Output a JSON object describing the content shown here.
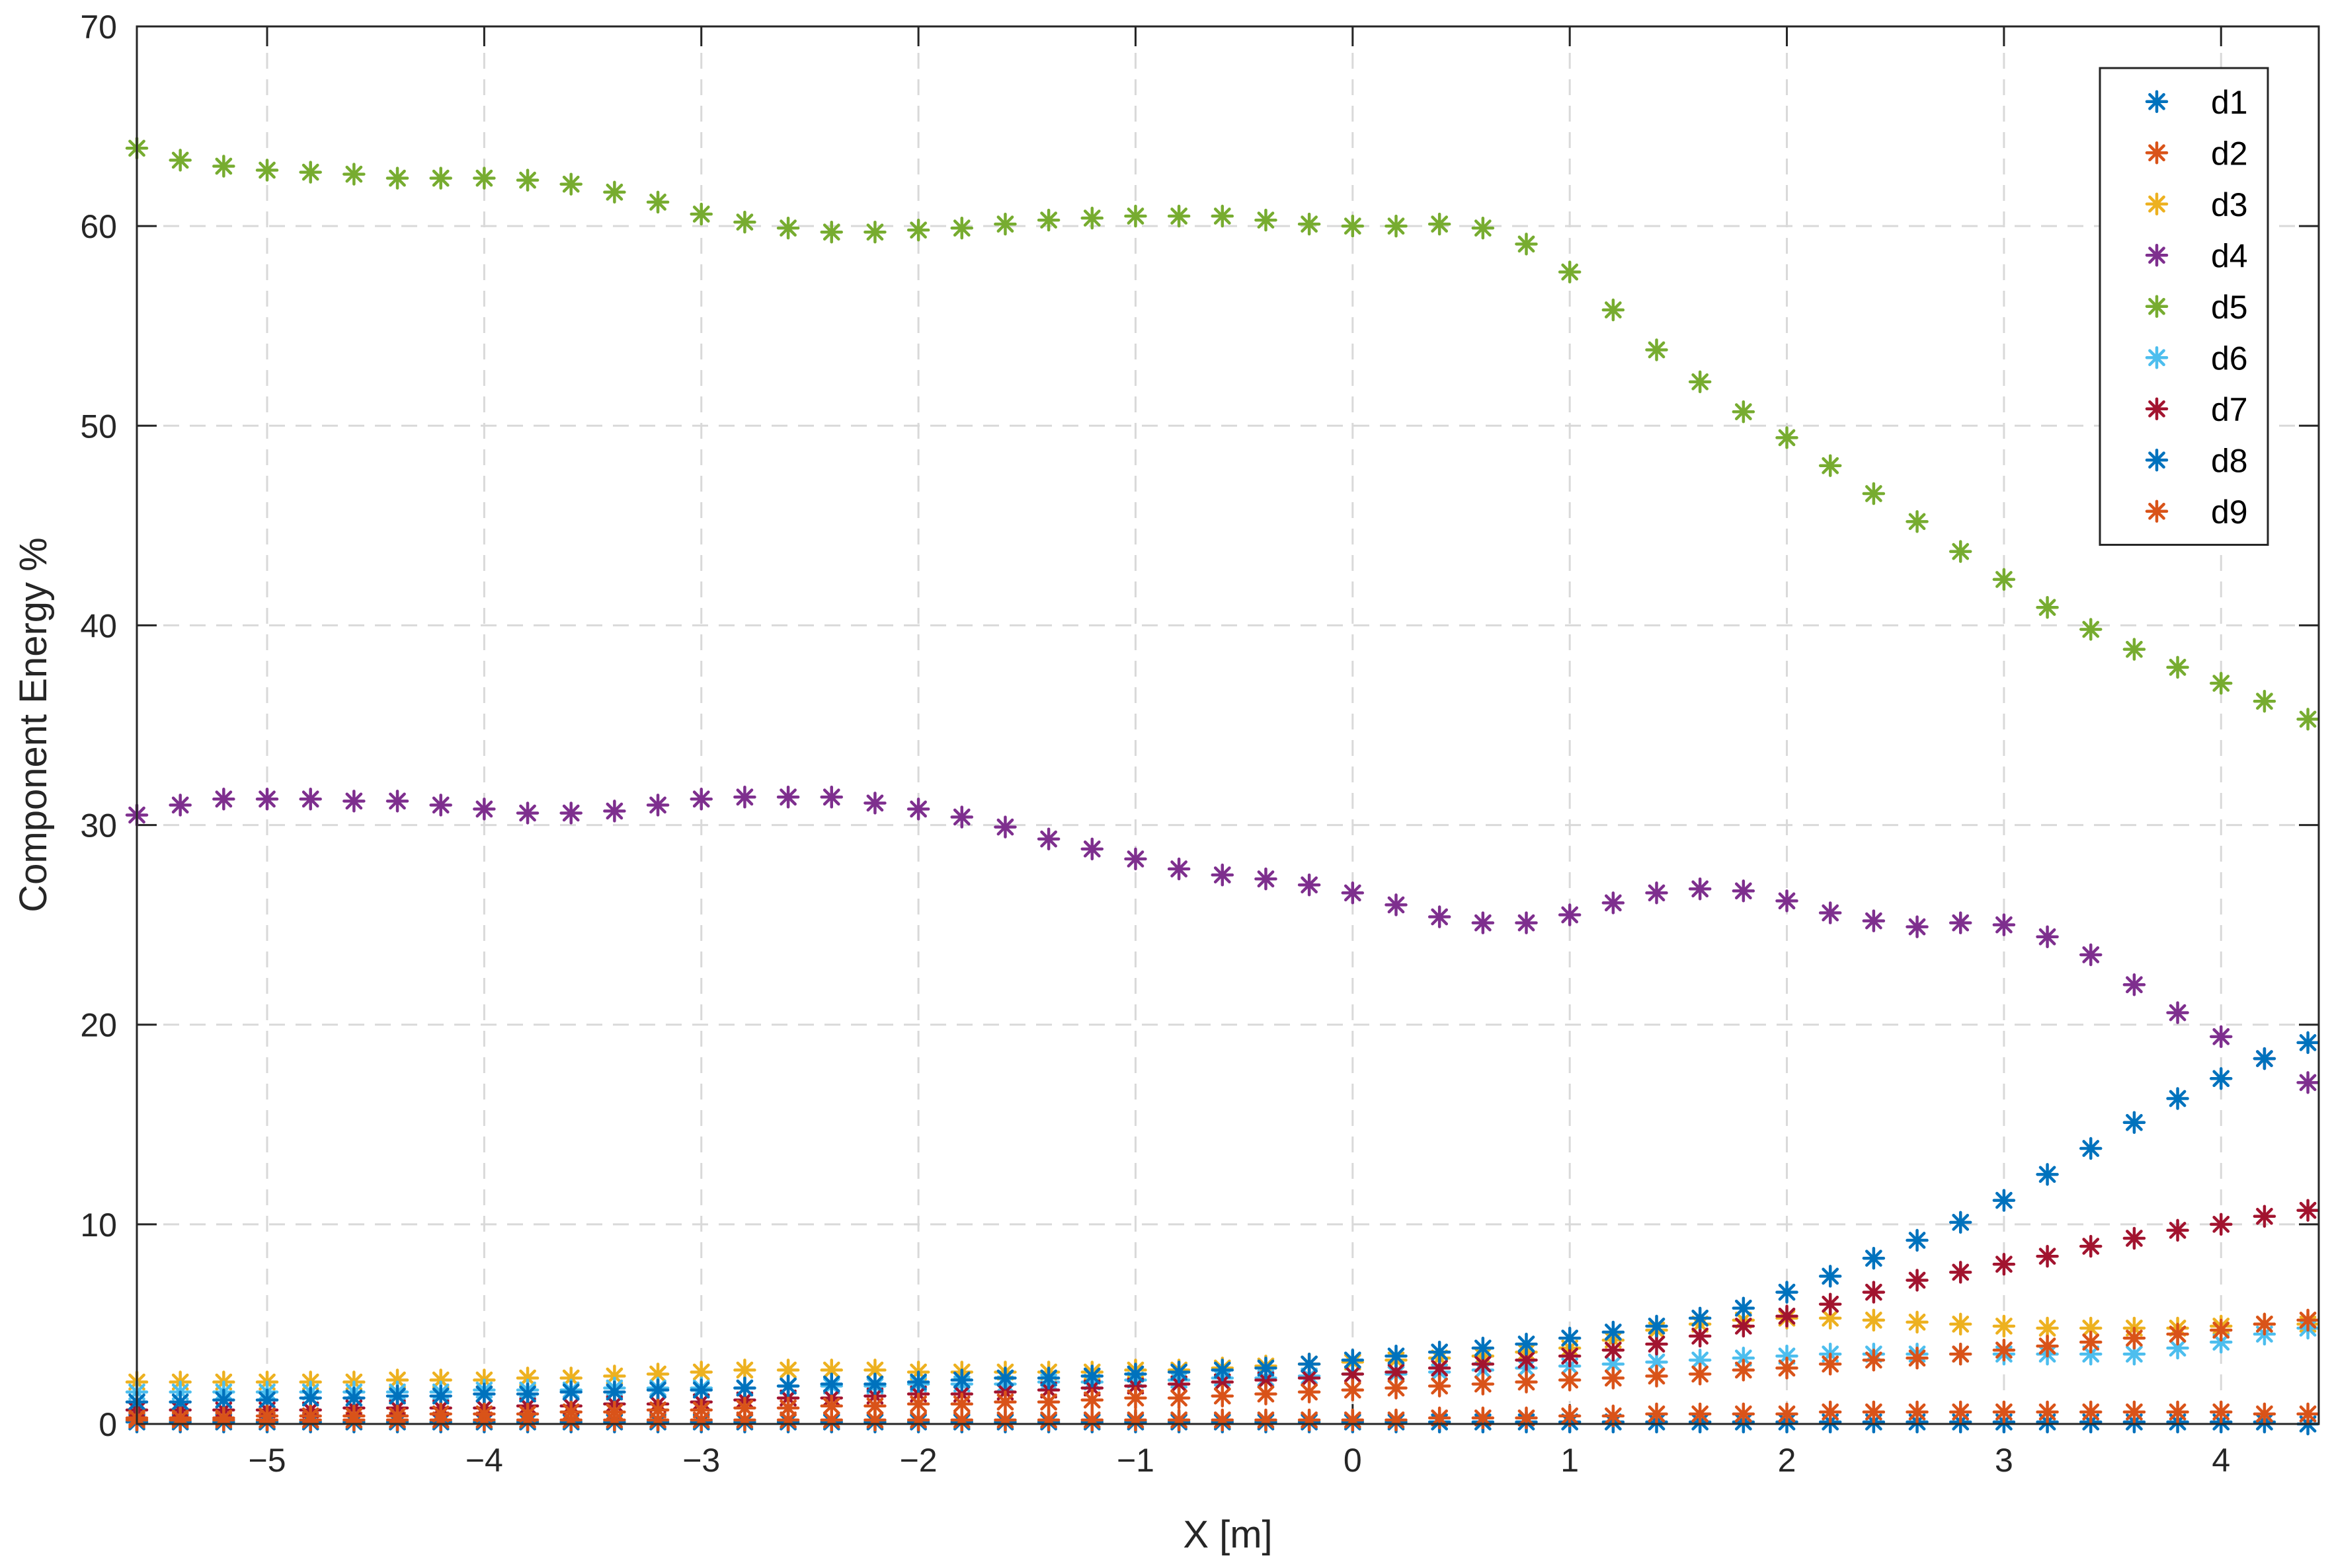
{
  "chart_data": {
    "type": "scatter",
    "marker": "asterisk",
    "title": "",
    "xlabel": "X [m]",
    "ylabel": "Component Energy %",
    "xlim": [
      -5.6,
      4.45
    ],
    "ylim": [
      0,
      70
    ],
    "xticks": [
      -5,
      -4,
      -3,
      -2,
      -1,
      0,
      1,
      2,
      3,
      4
    ],
    "xtick_labels": [
      "−5",
      "−4",
      "−3",
      "−2",
      "−1",
      "0",
      "1",
      "2",
      "3",
      "4"
    ],
    "yticks": [
      0,
      10,
      20,
      30,
      40,
      50,
      60,
      70
    ],
    "ytick_labels": [
      "0",
      "10",
      "20",
      "30",
      "40",
      "50",
      "60",
      "70"
    ],
    "grid": true,
    "legend_position": "top-right",
    "x": [
      -5.6,
      -5.4,
      -5.2,
      -5.0,
      -4.8,
      -4.6,
      -4.4,
      -4.2,
      -4.0,
      -3.8,
      -3.6,
      -3.4,
      -3.2,
      -3.0,
      -2.8,
      -2.6,
      -2.4,
      -2.2,
      -2.0,
      -1.8,
      -1.6,
      -1.4,
      -1.2,
      -1.0,
      -0.8,
      -0.6,
      -0.4,
      -0.2,
      0.0,
      0.2,
      0.4,
      0.6,
      0.8,
      1.0,
      1.2,
      1.4,
      1.6,
      1.8,
      2.0,
      2.2,
      2.4,
      2.6,
      2.8,
      3.0,
      3.2,
      3.4,
      3.6,
      3.8,
      4.0,
      4.2,
      4.4
    ],
    "series": [
      {
        "name": "d1",
        "color": "#0072BD",
        "values": [
          0.1,
          0.1,
          0.1,
          0.1,
          0.1,
          0.1,
          0.1,
          0.1,
          0.1,
          0.1,
          0.1,
          0.1,
          0.1,
          0.1,
          0.1,
          0.1,
          0.1,
          0.1,
          0.1,
          0.1,
          0.1,
          0.1,
          0.1,
          0.1,
          0.1,
          0.1,
          0.1,
          0.1,
          0.1,
          0.1,
          0.1,
          0.1,
          0.1,
          0.1,
          0.1,
          0.1,
          0.1,
          0.1,
          0.1,
          0.1,
          0.1,
          0.1,
          0.1,
          0.1,
          0.1,
          0.1,
          0.1,
          0.1,
          0.1,
          0.1,
          0.0
        ]
      },
      {
        "name": "d2",
        "color": "#D95319",
        "values": [
          0.2,
          0.2,
          0.2,
          0.2,
          0.2,
          0.2,
          0.2,
          0.2,
          0.2,
          0.2,
          0.2,
          0.2,
          0.2,
          0.2,
          0.2,
          0.2,
          0.2,
          0.2,
          0.2,
          0.2,
          0.2,
          0.2,
          0.2,
          0.2,
          0.2,
          0.2,
          0.2,
          0.2,
          0.2,
          0.2,
          0.3,
          0.3,
          0.3,
          0.4,
          0.4,
          0.5,
          0.5,
          0.5,
          0.5,
          0.6,
          0.6,
          0.6,
          0.6,
          0.6,
          0.6,
          0.6,
          0.6,
          0.6,
          0.6,
          0.5,
          0.5
        ]
      },
      {
        "name": "d3",
        "color": "#EDB120",
        "values": [
          2.1,
          2.1,
          2.1,
          2.1,
          2.1,
          2.1,
          2.2,
          2.2,
          2.2,
          2.3,
          2.3,
          2.4,
          2.5,
          2.6,
          2.7,
          2.7,
          2.7,
          2.7,
          2.6,
          2.6,
          2.6,
          2.6,
          2.6,
          2.7,
          2.7,
          2.8,
          2.9,
          3.0,
          3.1,
          3.2,
          3.3,
          3.4,
          3.6,
          3.8,
          4.2,
          4.7,
          5.0,
          5.2,
          5.3,
          5.3,
          5.2,
          5.1,
          5.0,
          4.9,
          4.8,
          4.8,
          4.8,
          4.8,
          4.9,
          5.0,
          5.0
        ]
      },
      {
        "name": "d4",
        "color": "#7E2F8E",
        "values": [
          30.5,
          31.0,
          31.3,
          31.3,
          31.3,
          31.2,
          31.2,
          31.0,
          30.8,
          30.6,
          30.6,
          30.7,
          31.0,
          31.3,
          31.4,
          31.4,
          31.4,
          31.1,
          30.8,
          30.4,
          29.9,
          29.3,
          28.8,
          28.3,
          27.8,
          27.5,
          27.3,
          27.0,
          26.6,
          26.0,
          25.4,
          25.1,
          25.1,
          25.5,
          26.1,
          26.6,
          26.8,
          26.7,
          26.2,
          25.6,
          25.2,
          24.9,
          25.1,
          25.0,
          24.4,
          23.5,
          22.0,
          20.6,
          19.4,
          18.3,
          17.1
        ]
      },
      {
        "name": "d5",
        "color": "#77AC30",
        "values": [
          63.9,
          63.3,
          63.0,
          62.8,
          62.7,
          62.6,
          62.4,
          62.4,
          62.4,
          62.3,
          62.1,
          61.7,
          61.2,
          60.6,
          60.2,
          59.9,
          59.7,
          59.7,
          59.8,
          59.9,
          60.1,
          60.3,
          60.4,
          60.5,
          60.5,
          60.5,
          60.3,
          60.1,
          60.0,
          60.0,
          60.1,
          59.9,
          59.1,
          57.7,
          55.8,
          53.8,
          52.2,
          50.7,
          49.4,
          48.0,
          46.6,
          45.2,
          43.7,
          42.3,
          40.9,
          39.8,
          38.8,
          37.9,
          37.1,
          36.2,
          35.3
        ]
      },
      {
        "name": "d6",
        "color": "#4DBEEE",
        "values": [
          1.6,
          1.6,
          1.6,
          1.6,
          1.6,
          1.6,
          1.6,
          1.6,
          1.7,
          1.7,
          1.7,
          1.8,
          1.8,
          1.8,
          1.8,
          1.9,
          1.9,
          1.9,
          2.0,
          2.0,
          2.0,
          2.1,
          2.1,
          2.2,
          2.2,
          2.3,
          2.3,
          2.4,
          2.5,
          2.5,
          2.6,
          2.7,
          2.8,
          2.9,
          3.0,
          3.1,
          3.2,
          3.3,
          3.4,
          3.5,
          3.5,
          3.5,
          3.5,
          3.5,
          3.5,
          3.5,
          3.5,
          3.8,
          4.1,
          4.5,
          4.8
        ]
      },
      {
        "name": "d7",
        "color": "#A2142F",
        "values": [
          0.7,
          0.7,
          0.7,
          0.7,
          0.7,
          0.8,
          0.8,
          0.8,
          0.8,
          0.9,
          0.9,
          1.0,
          1.0,
          1.1,
          1.2,
          1.3,
          1.3,
          1.4,
          1.5,
          1.5,
          1.6,
          1.7,
          1.8,
          1.9,
          2.0,
          2.1,
          2.2,
          2.3,
          2.5,
          2.6,
          2.8,
          3.0,
          3.2,
          3.4,
          3.7,
          4.0,
          4.4,
          4.9,
          5.4,
          6.0,
          6.6,
          7.2,
          7.6,
          8.0,
          8.4,
          8.9,
          9.3,
          9.7,
          10.0,
          10.4,
          10.7
        ]
      },
      {
        "name": "d8",
        "color": "#0072BD",
        "values": [
          1.1,
          1.1,
          1.2,
          1.2,
          1.3,
          1.3,
          1.4,
          1.4,
          1.5,
          1.5,
          1.6,
          1.6,
          1.7,
          1.7,
          1.8,
          1.9,
          2.0,
          2.0,
          2.1,
          2.2,
          2.3,
          2.3,
          2.4,
          2.5,
          2.6,
          2.7,
          2.8,
          3.0,
          3.2,
          3.4,
          3.6,
          3.8,
          4.0,
          4.3,
          4.6,
          4.9,
          5.3,
          5.8,
          6.6,
          7.4,
          8.3,
          9.2,
          10.1,
          11.2,
          12.5,
          13.8,
          15.1,
          16.3,
          17.3,
          18.3,
          19.1
        ]
      },
      {
        "name": "d9",
        "color": "#D95319",
        "values": [
          0.3,
          0.3,
          0.3,
          0.4,
          0.4,
          0.4,
          0.4,
          0.5,
          0.5,
          0.5,
          0.6,
          0.6,
          0.7,
          0.7,
          0.8,
          0.8,
          0.9,
          0.9,
          1.0,
          1.0,
          1.1,
          1.1,
          1.2,
          1.3,
          1.3,
          1.4,
          1.5,
          1.6,
          1.7,
          1.8,
          1.9,
          2.0,
          2.1,
          2.2,
          2.3,
          2.4,
          2.5,
          2.7,
          2.8,
          3.0,
          3.2,
          3.3,
          3.5,
          3.7,
          3.9,
          4.1,
          4.3,
          4.5,
          4.7,
          5.0,
          5.2
        ]
      }
    ]
  }
}
